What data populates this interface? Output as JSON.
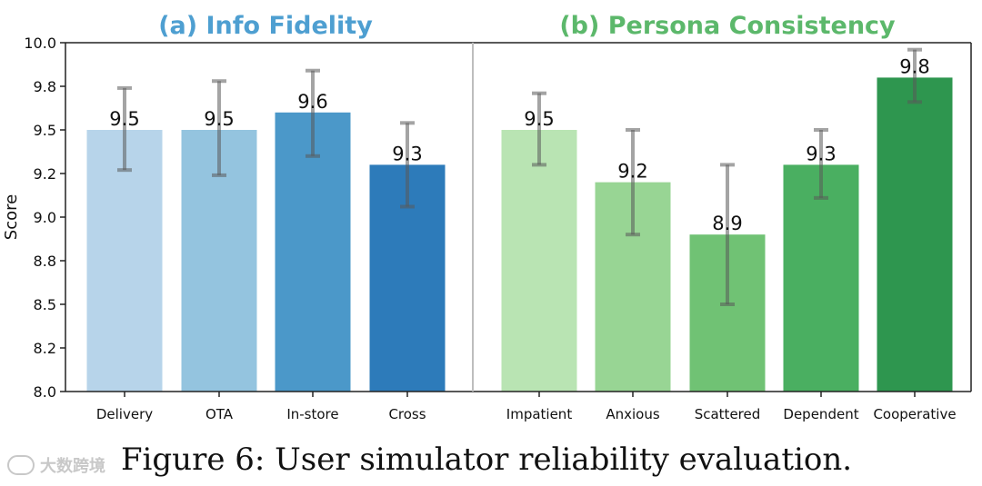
{
  "chart_data": [
    {
      "type": "bar",
      "title": "(a) Info Fidelity",
      "title_color": "#4e9fd1",
      "ylabel": "Score",
      "ylim": [
        8.0,
        10.0
      ],
      "yticks": [
        "10.0",
        "9.8",
        "9.5",
        "9.2",
        "9.0",
        "8.8",
        "8.5",
        "8.2",
        "8.0"
      ],
      "ytick_values": [
        10.0,
        9.75,
        9.5,
        9.25,
        9.0,
        8.75,
        8.5,
        8.25,
        8.0
      ],
      "categories": [
        "Delivery",
        "OTA",
        "In-store",
        "Cross"
      ],
      "values": [
        9.5,
        9.5,
        9.6,
        9.3
      ],
      "value_labels": [
        "9.5",
        "9.5",
        "9.6",
        "9.3"
      ],
      "error_low": [
        9.27,
        9.24,
        9.35,
        9.06
      ],
      "error_high": [
        9.74,
        9.78,
        9.84,
        9.54
      ],
      "colors": [
        "#b7d4ea",
        "#94c4df",
        "#4b98c9",
        "#2d7bba"
      ]
    },
    {
      "type": "bar",
      "title": "(b) Persona Consistency",
      "title_color": "#5cb86b",
      "ylim": [
        8.0,
        10.0
      ],
      "categories": [
        "Impatient",
        "Anxious",
        "Scattered",
        "Dependent",
        "Cooperative"
      ],
      "values": [
        9.5,
        9.2,
        8.9,
        9.3,
        9.8
      ],
      "value_labels": [
        "9.5",
        "9.2",
        "8.9",
        "9.3",
        "9.8"
      ],
      "error_low": [
        9.3,
        8.9,
        8.5,
        9.11,
        9.66
      ],
      "error_high": [
        9.71,
        9.5,
        9.3,
        9.5,
        9.96
      ],
      "colors": [
        "#b9e4b3",
        "#98d594",
        "#70c274",
        "#4aaf61",
        "#2e964f"
      ]
    }
  ],
  "caption": "Figure 6: User simulator reliability evaluation.",
  "watermark": "大数跨境"
}
